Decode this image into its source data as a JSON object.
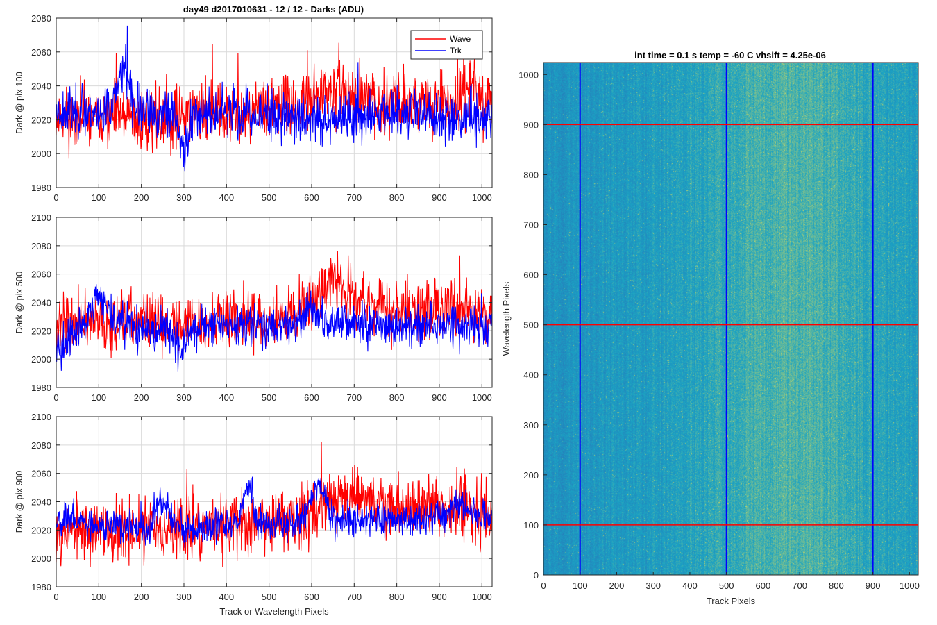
{
  "figure": {
    "suptitle": "day49 d2017010631 - 12 / 12 - Darks (ADU)",
    "heatmap_title": "int time = 0.1 s   temp = -60 C   vhsift = 4.25e-06"
  },
  "colors": {
    "wave": "#ff0000",
    "trk": "#0000ff",
    "grid": "#d9d9d9",
    "heatmap_base": "#1aa3c4",
    "heatmap_dark": "#2a72b8",
    "heatmap_bright": "#b8d46a"
  },
  "chart_data": [
    {
      "type": "line",
      "title": "day49 d2017010631 - 12 / 12 - Darks (ADU)",
      "ylabel": "Dark @ pix 100",
      "xlabel": "",
      "xlim": [
        0,
        1024
      ],
      "ylim": [
        1980,
        2080
      ],
      "xticks": [
        0,
        100,
        200,
        300,
        400,
        500,
        600,
        700,
        800,
        900,
        1000
      ],
      "yticks": [
        1980,
        2000,
        2020,
        2040,
        2060,
        2080
      ],
      "grid": true,
      "legend": "top-right",
      "series": [
        {
          "name": "Wave",
          "color": "#ff0000",
          "baseline": [
            [
              0,
              2022
            ],
            [
              200,
              2020
            ],
            [
              400,
              2024
            ],
            [
              550,
              2028
            ],
            [
              700,
              2030
            ],
            [
              1024,
              2030
            ]
          ],
          "features": [
            [
              320,
              30,
              2
            ],
            [
              660,
              40,
              6
            ],
            [
              980,
              8,
              12
            ]
          ],
          "noise": 9,
          "seed": 11
        },
        {
          "name": "Trk",
          "color": "#0000ff",
          "baseline": [
            [
              0,
              2025
            ],
            [
              1024,
              2022
            ]
          ],
          "features": [
            [
              160,
              15,
              25
            ],
            [
              300,
              12,
              -22
            ],
            [
              600,
              60,
              -2
            ]
          ],
          "noise": 7,
          "seed": 23
        }
      ]
    },
    {
      "type": "line",
      "ylabel": "Dark @ pix 500",
      "xlabel": "",
      "xlim": [
        0,
        1024
      ],
      "ylim": [
        1980,
        2100
      ],
      "xticks": [
        0,
        100,
        200,
        300,
        400,
        500,
        600,
        700,
        800,
        900,
        1000
      ],
      "yticks": [
        1980,
        2000,
        2020,
        2040,
        2060,
        2080,
        2100
      ],
      "grid": true,
      "series": [
        {
          "name": "Wave",
          "color": "#ff0000",
          "baseline": [
            [
              0,
              2025
            ],
            [
              300,
              2026
            ],
            [
              500,
              2028
            ],
            [
              650,
              2040
            ],
            [
              750,
              2034
            ],
            [
              1024,
              2034
            ]
          ],
          "features": [
            [
              640,
              30,
              12
            ],
            [
              700,
              40,
              8
            ]
          ],
          "noise": 10,
          "seed": 37
        },
        {
          "name": "Trk",
          "color": "#0000ff",
          "baseline": [
            [
              0,
              2015
            ],
            [
              100,
              2030
            ],
            [
              200,
              2020
            ],
            [
              600,
              2025
            ],
            [
              1024,
              2022
            ]
          ],
          "features": [
            [
              10,
              15,
              -12
            ],
            [
              100,
              14,
              16
            ],
            [
              290,
              12,
              -15
            ],
            [
              600,
              20,
              8
            ]
          ],
          "noise": 7,
          "seed": 41
        }
      ]
    },
    {
      "type": "line",
      "ylabel": "Dark @ pix 900",
      "xlabel": "Track or Wavelength Pixels",
      "xlim": [
        0,
        1024
      ],
      "ylim": [
        1980,
        2100
      ],
      "xticks": [
        0,
        100,
        200,
        300,
        400,
        500,
        600,
        700,
        800,
        900,
        1000
      ],
      "yticks": [
        1980,
        2000,
        2020,
        2040,
        2060,
        2080,
        2100
      ],
      "grid": true,
      "series": [
        {
          "name": "Wave",
          "color": "#ff0000",
          "baseline": [
            [
              0,
              2020
            ],
            [
              300,
              2020
            ],
            [
              500,
              2025
            ],
            [
              650,
              2038
            ],
            [
              800,
              2036
            ],
            [
              1024,
              2034
            ]
          ],
          "features": [
            [
              700,
              40,
              8
            ]
          ],
          "noise": 11,
          "seed": 53
        },
        {
          "name": "Trk",
          "color": "#0000ff",
          "baseline": [
            [
              0,
              2028
            ],
            [
              200,
              2020
            ],
            [
              1024,
              2030
            ]
          ],
          "features": [
            [
              250,
              18,
              20
            ],
            [
              450,
              12,
              28
            ],
            [
              615,
              18,
              26
            ],
            [
              950,
              20,
              10
            ]
          ],
          "noise": 6,
          "seed": 67
        }
      ]
    },
    {
      "type": "heatmap",
      "title": "int time = 0.1 s   temp = -60 C   vhsift = 4.25e-06",
      "xlabel": "Track Pixels",
      "ylabel": "Wavelength Pixels",
      "xlim": [
        0,
        1024
      ],
      "ylim": [
        0,
        1024
      ],
      "xticks": [
        0,
        100,
        200,
        300,
        400,
        500,
        600,
        700,
        800,
        900,
        1000
      ],
      "yticks": [
        0,
        100,
        200,
        300,
        400,
        500,
        600,
        700,
        800,
        900,
        1000
      ],
      "vertical_lines": {
        "color": "#0000ff",
        "x": [
          100,
          500,
          900
        ]
      },
      "horizontal_lines": {
        "color": "#ff0000",
        "y": [
          100,
          500,
          900
        ]
      },
      "bright_region_center_x": 680
    }
  ]
}
